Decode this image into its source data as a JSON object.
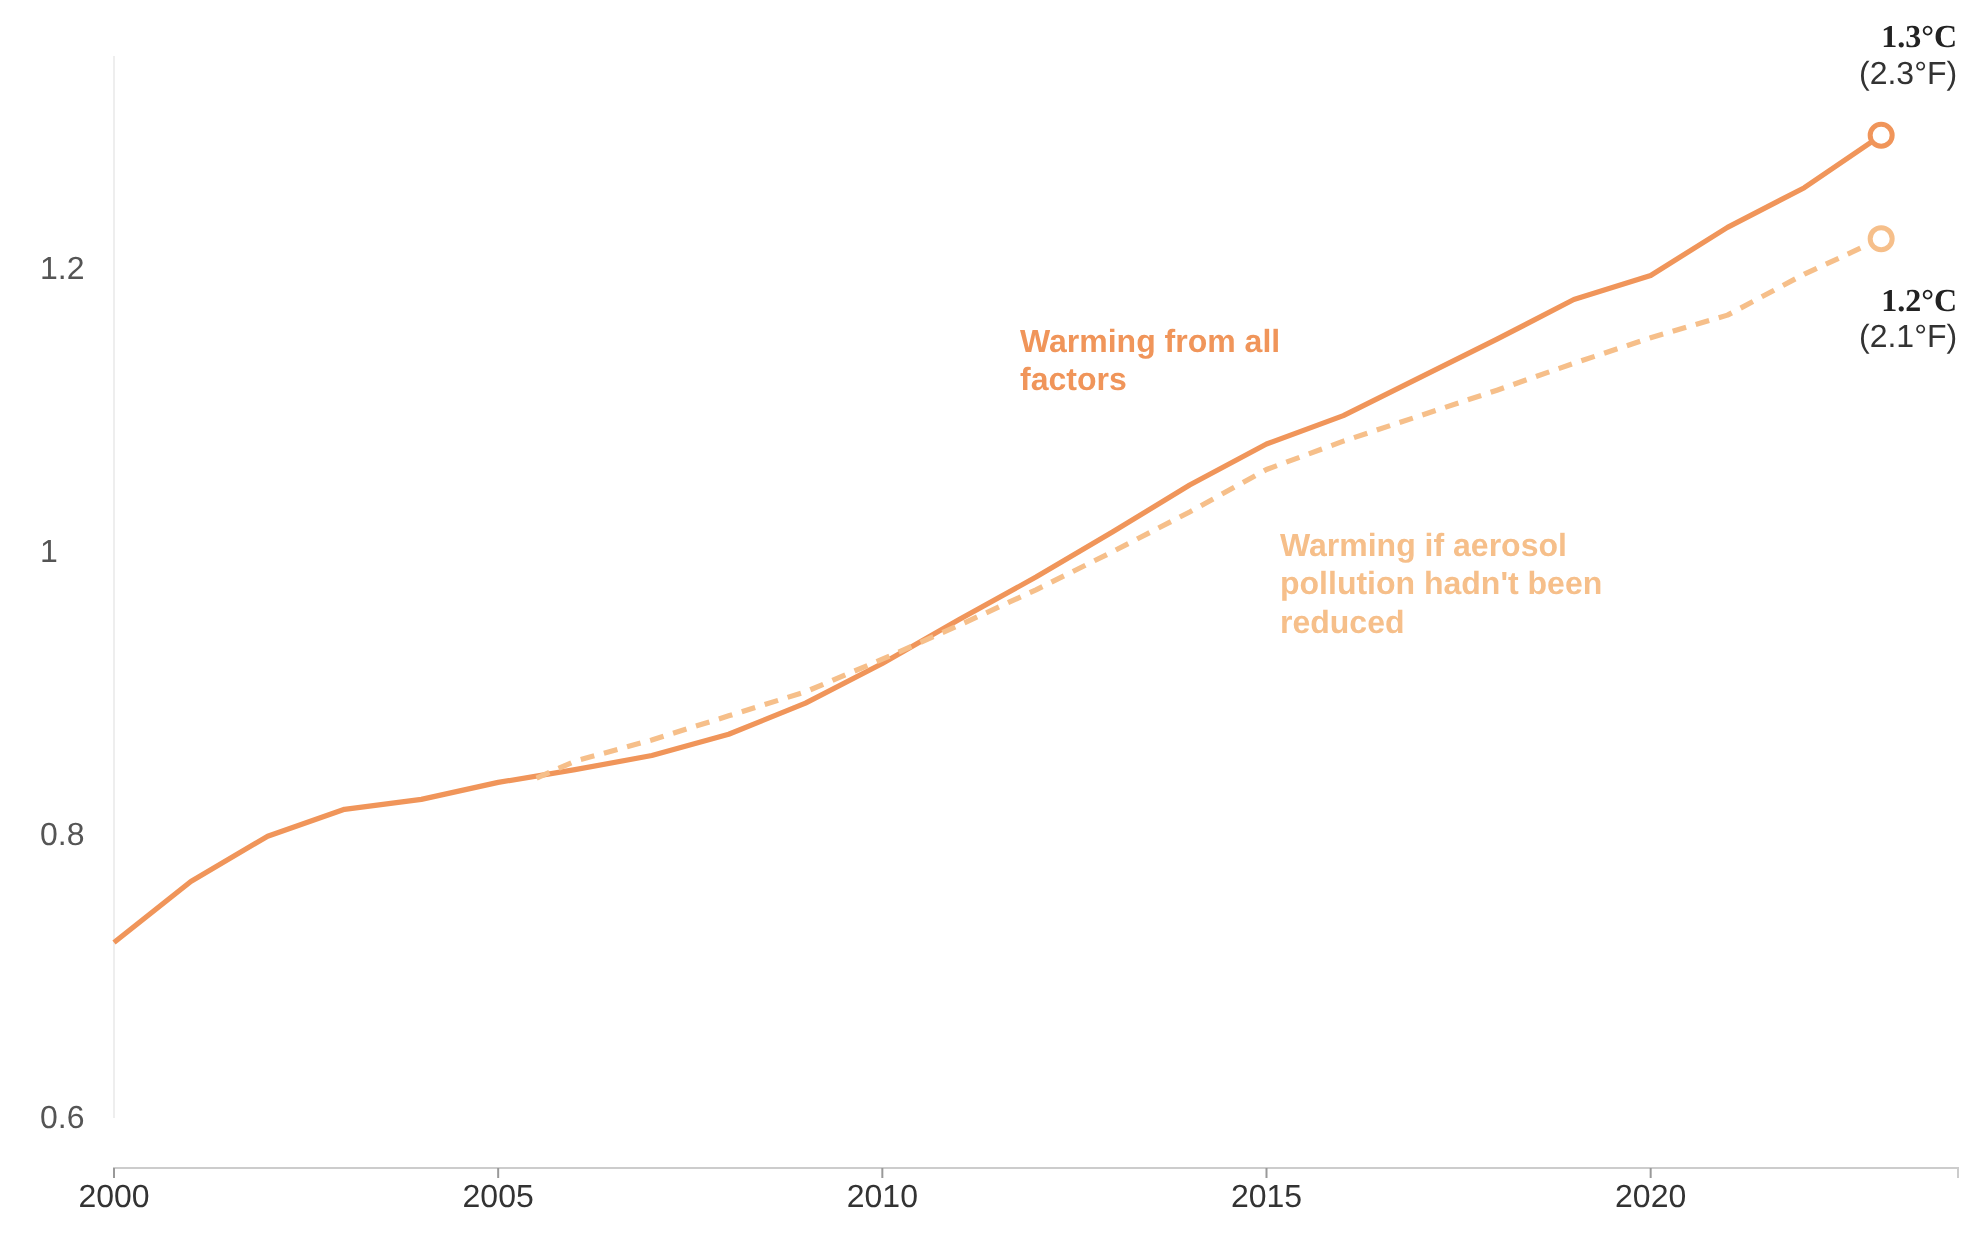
{
  "chart_data": {
    "type": "line",
    "xlim": [
      2000,
      2024
    ],
    "xticks": [
      2000,
      2005,
      2010,
      2015,
      2020
    ],
    "ylim": [
      0.6,
      1.35
    ],
    "yticks": [
      0.6,
      0.8,
      {
        "value": 1,
        "label": "1"
      },
      1.2
    ],
    "grid": false,
    "series": [
      {
        "name": "Warming from all factors",
        "color": "#f0955a",
        "line_style": "solid",
        "x": [
          2000,
          2001,
          2002,
          2003,
          2004,
          2005,
          2006,
          2007,
          2008,
          2009,
          2010,
          2011,
          2012,
          2013,
          2014,
          2015,
          2016,
          2017,
          2018,
          2019,
          2020,
          2021,
          2022,
          2023
        ],
        "values": [
          0.724,
          0.767,
          0.799,
          0.818,
          0.825,
          0.837,
          0.846,
          0.856,
          0.871,
          0.893,
          0.921,
          0.952,
          0.982,
          1.014,
          1.047,
          1.076,
          1.096,
          1.123,
          1.15,
          1.178,
          1.195,
          1.229,
          1.257,
          1.294
        ]
      },
      {
        "name": "Warming if aerosol pollution hadn't been reduced",
        "color": "#f6bf8a",
        "line_style": "dashed",
        "x": [
          2005.5,
          2006,
          2007,
          2008,
          2009,
          2010,
          2011,
          2012,
          2013,
          2014,
          2015,
          2016,
          2017,
          2018,
          2019,
          2020,
          2021,
          2022,
          2023
        ],
        "values": [
          0.84,
          0.852,
          0.867,
          0.884,
          0.901,
          0.924,
          0.948,
          0.973,
          1.0,
          1.028,
          1.058,
          1.078,
          1.096,
          1.114,
          1.133,
          1.151,
          1.167,
          1.196,
          1.221
        ]
      },
      {
        "type": "scatter",
        "marker": "circle",
        "color": "#f0955a",
        "x": [
          2023
        ],
        "values": [
          1.294
        ]
      },
      {
        "type": "scatter",
        "marker": "circle",
        "color": "#f6bf8a",
        "x": [
          2023
        ],
        "values": [
          1.221
        ]
      }
    ],
    "annotations": [
      {
        "text": "1.3°C (2.3°F)",
        "x": 2023,
        "y": 1.294
      },
      {
        "text": "1.2°C (2.1°F)",
        "x": 2023,
        "y": 1.221
      }
    ]
  }
}
